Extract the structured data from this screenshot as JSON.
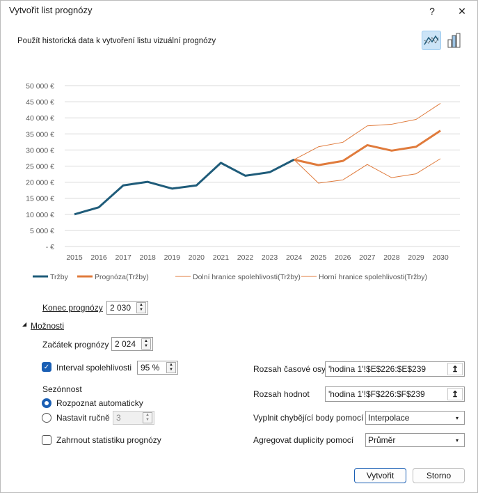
{
  "window": {
    "title": "Vytvořit list prognózy",
    "help": "?",
    "close": "✕"
  },
  "description": "Použít historická data k vytvoření listu vizuální prognózy",
  "chart_type_buttons": [
    {
      "icon": "line-chart-icon",
      "selected": true
    },
    {
      "icon": "column-chart-icon",
      "selected": false
    }
  ],
  "colors": {
    "history": "#1f5c7a",
    "forecast": "#e07b3c",
    "accent": "#1a5fb4"
  },
  "chart_data": {
    "type": "line",
    "x": [
      2015,
      2016,
      2017,
      2018,
      2019,
      2020,
      2021,
      2022,
      2023,
      2024,
      2025,
      2026,
      2027,
      2028,
      2029,
      2030
    ],
    "xtick_labels": [
      "2015",
      "2016",
      "2017",
      "2018",
      "2019",
      "2020",
      "2021",
      "2022",
      "2023",
      "2024",
      "2025",
      "2026",
      "2027",
      "2028",
      "2029",
      "2030"
    ],
    "ytick_labels": [
      "-  €",
      "5 000 €",
      "10 000 €",
      "15 000 €",
      "20 000 €",
      "25 000 €",
      "30 000 €",
      "35 000 €",
      "40 000 €",
      "45 000 €",
      "50 000 €"
    ],
    "ylim": [
      0,
      50000
    ],
    "grid": true,
    "legend": "bottom",
    "series": [
      {
        "name": "Tržby",
        "x": [
          2015,
          2016,
          2017,
          2018,
          2019,
          2020,
          2021,
          2022,
          2023,
          2024
        ],
        "values": [
          10000,
          12200,
          19000,
          20100,
          18000,
          19000,
          26000,
          22000,
          23100,
          27000
        ],
        "color": "#1f5c7a",
        "width": 3
      },
      {
        "name": "Prognóza(Tržby)",
        "x": [
          2024,
          2025,
          2026,
          2027,
          2028,
          2029,
          2030
        ],
        "values": [
          27000,
          25300,
          26600,
          31500,
          29800,
          31000,
          36000
        ],
        "color": "#e07b3c",
        "width": 3
      },
      {
        "name": "Dolní hranice spolehlivosti(Tržby)",
        "x": [
          2024,
          2025,
          2026,
          2027,
          2028,
          2029,
          2030
        ],
        "values": [
          27000,
          19700,
          20700,
          25500,
          21400,
          22600,
          27300
        ],
        "color": "#e07b3c",
        "width": 1
      },
      {
        "name": "Horní hranice spolehlivosti(Tržby)",
        "x": [
          2024,
          2025,
          2026,
          2027,
          2028,
          2029,
          2030
        ],
        "values": [
          27000,
          31000,
          32400,
          37500,
          38000,
          39500,
          44500
        ],
        "color": "#e07b3c",
        "width": 1
      }
    ]
  },
  "form": {
    "end_label": "Konec prognózy",
    "end_value": "2 030",
    "options_label": "Možnosti",
    "start_label": "Začátek prognózy",
    "start_value": "2 024",
    "ci_label": "Interval spolehlivosti",
    "ci_checked": true,
    "ci_value": "95 %",
    "seasonality_label": "Sezónnost",
    "auto_label": "Rozpoznat automaticky",
    "manual_label": "Nastavit ručně",
    "manual_value": "3",
    "stats_label": "Zahrnout statistiku prognózy",
    "timeline_label": "Rozsah časové osy",
    "timeline_value": "'hodina 1'!$E$226:$E$239",
    "values_label": "Rozsah hodnot",
    "values_value": "'hodina 1'!$F$226:$F$239",
    "fill_label": "Vyplnit chybějící body pomocí",
    "fill_value": "Interpolace",
    "agg_label": "Agregovat duplicity pomocí",
    "agg_value": "Průměr",
    "create": "Vytvořit",
    "cancel": "Storno"
  }
}
